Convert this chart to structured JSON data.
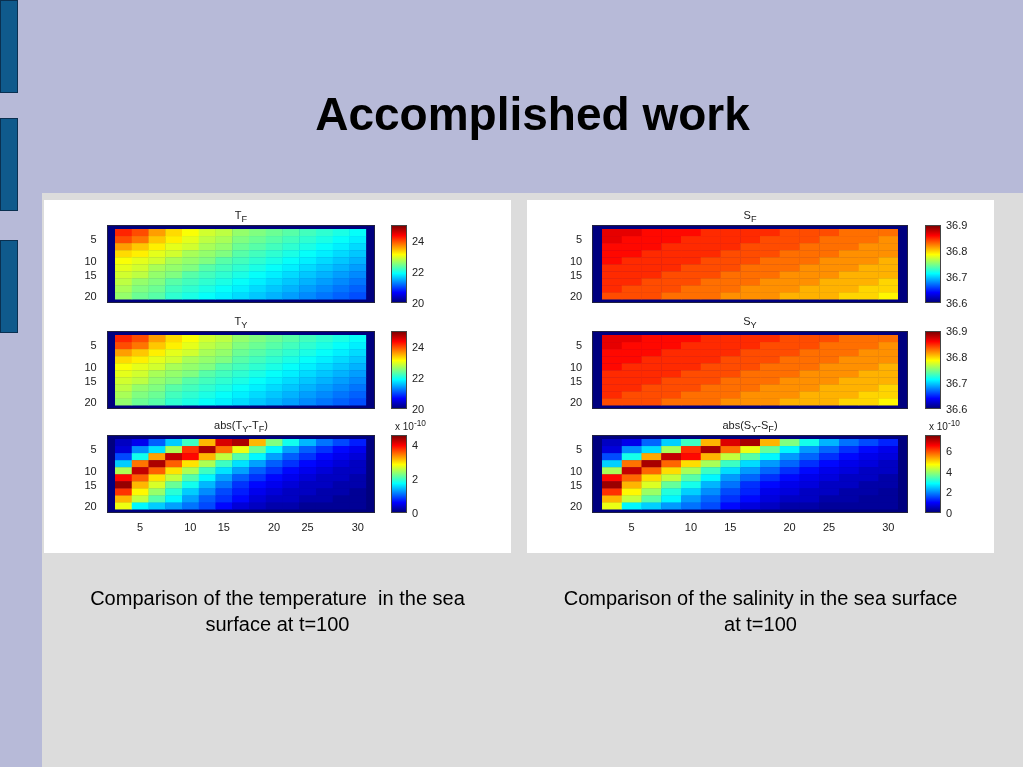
{
  "chart_data": [
    {
      "type": "heatmap",
      "title": "T$_{F}$",
      "annotations": [
        "Accomplished work"
      ],
      "tick_labels": "y",
      "categories": [
        null,
        "5",
        null,
        null,
        "10",
        null,
        "15",
        null,
        null,
        "20",
        null,
        "25",
        null,
        null,
        "30"
      ],
      "y_categories": [
        null,
        "5",
        null,
        null,
        "10",
        null,
        "15",
        null,
        null,
        "20"
      ],
      "clim": [
        20,
        25
      ],
      "cticks": [
        20,
        22,
        24
      ],
      "cells": [
        [
          24.2,
          24.0,
          23.6,
          23.3,
          23.1,
          22.9,
          22.8,
          22.6,
          22.5,
          22.4,
          22.3,
          22.2,
          22.1,
          22.0,
          21.9
        ],
        [
          24.0,
          23.8,
          23.4,
          23.2,
          23.0,
          22.8,
          22.7,
          22.5,
          22.4,
          22.3,
          22.2,
          22.1,
          22.0,
          21.9,
          21.8
        ],
        [
          23.6,
          23.4,
          23.2,
          23.0,
          22.9,
          22.7,
          22.6,
          22.4,
          22.3,
          22.2,
          22.1,
          22.0,
          21.9,
          21.8,
          21.7
        ],
        [
          23.3,
          23.2,
          23.0,
          22.9,
          22.7,
          22.6,
          22.5,
          22.3,
          22.2,
          22.1,
          22.0,
          21.9,
          21.8,
          21.7,
          21.6
        ],
        [
          23.1,
          23.0,
          22.9,
          22.7,
          22.6,
          22.5,
          22.3,
          22.2,
          22.1,
          22.0,
          21.9,
          21.8,
          21.7,
          21.6,
          21.5
        ],
        [
          23.0,
          22.9,
          22.7,
          22.6,
          22.5,
          22.3,
          22.2,
          22.1,
          22.0,
          21.9,
          21.8,
          21.7,
          21.6,
          21.5,
          21.4
        ],
        [
          22.9,
          22.8,
          22.6,
          22.5,
          22.3,
          22.2,
          22.1,
          22.0,
          21.9,
          21.8,
          21.7,
          21.6,
          21.5,
          21.4,
          21.3
        ],
        [
          22.8,
          22.6,
          22.5,
          22.3,
          22.2,
          22.1,
          22.0,
          21.9,
          21.8,
          21.7,
          21.6,
          21.5,
          21.4,
          21.3,
          21.2
        ],
        [
          22.7,
          22.5,
          22.4,
          22.2,
          22.1,
          22.0,
          21.9,
          21.8,
          21.7,
          21.6,
          21.5,
          21.4,
          21.3,
          21.2,
          21.1
        ],
        [
          22.6,
          22.4,
          22.3,
          22.1,
          22.0,
          21.9,
          21.8,
          21.7,
          21.6,
          21.5,
          21.4,
          21.3,
          21.2,
          21.1,
          21.0
        ]
      ]
    },
    {
      "type": "heatmap",
      "title": "T$_{Y}$",
      "tick_labels": "y",
      "categories": [
        null,
        "5",
        null,
        null,
        "10",
        null,
        "15",
        null,
        null,
        "20",
        null,
        "25",
        null,
        null,
        "30"
      ],
      "y_categories": [
        null,
        "5",
        null,
        null,
        "10",
        null,
        "15",
        null,
        null,
        "20"
      ],
      "clim": [
        20,
        25
      ],
      "cticks": [
        20,
        22,
        24
      ],
      "cells": [
        [
          24.2,
          24.0,
          23.6,
          23.3,
          23.1,
          22.9,
          22.8,
          22.6,
          22.5,
          22.4,
          22.3,
          22.2,
          22.1,
          22.0,
          21.9
        ],
        [
          24.0,
          23.8,
          23.4,
          23.2,
          23.0,
          22.8,
          22.7,
          22.5,
          22.4,
          22.3,
          22.2,
          22.1,
          22.0,
          21.9,
          21.8
        ],
        [
          23.6,
          23.4,
          23.2,
          23.0,
          22.9,
          22.7,
          22.6,
          22.4,
          22.3,
          22.2,
          22.1,
          22.0,
          21.9,
          21.8,
          21.7
        ],
        [
          23.3,
          23.2,
          23.0,
          22.9,
          22.7,
          22.6,
          22.5,
          22.3,
          22.2,
          22.1,
          22.0,
          21.9,
          21.8,
          21.7,
          21.6
        ],
        [
          23.1,
          23.0,
          22.9,
          22.7,
          22.6,
          22.5,
          22.3,
          22.2,
          22.1,
          22.0,
          21.9,
          21.8,
          21.7,
          21.6,
          21.5
        ],
        [
          23.0,
          22.9,
          22.7,
          22.6,
          22.5,
          22.3,
          22.2,
          22.1,
          22.0,
          21.9,
          21.8,
          21.7,
          21.6,
          21.5,
          21.4
        ],
        [
          22.9,
          22.8,
          22.6,
          22.5,
          22.3,
          22.2,
          22.1,
          22.0,
          21.9,
          21.8,
          21.7,
          21.6,
          21.5,
          21.4,
          21.3
        ],
        [
          22.8,
          22.6,
          22.5,
          22.3,
          22.2,
          22.1,
          22.0,
          21.9,
          21.8,
          21.7,
          21.6,
          21.5,
          21.4,
          21.3,
          21.2
        ],
        [
          22.7,
          22.5,
          22.4,
          22.2,
          22.1,
          22.0,
          21.9,
          21.8,
          21.7,
          21.6,
          21.5,
          21.4,
          21.3,
          21.2,
          21.1
        ],
        [
          22.6,
          22.4,
          22.3,
          22.1,
          22.0,
          21.9,
          21.8,
          21.7,
          21.6,
          21.5,
          21.4,
          21.3,
          21.2,
          21.1,
          21.0
        ]
      ]
    },
    {
      "type": "heatmap",
      "title": "abs(T$_{Y}$-T$_{F}$)",
      "clabel": "x 10$^{-10}$",
      "annotations": [
        "Comparison of the temperature  in the sea surface at t=100"
      ],
      "categories": [
        null,
        "5",
        null,
        null,
        "10",
        null,
        "15",
        null,
        null,
        "20",
        null,
        "25",
        null,
        null,
        "30"
      ],
      "y_categories": [
        null,
        "5",
        null,
        null,
        "10",
        null,
        "15",
        null,
        null,
        "20"
      ],
      "clim": [
        0,
        4.6
      ],
      "cticks": [
        0,
        2,
        4
      ],
      "cells": [
        [
          0.3,
          0.5,
          1.0,
          1.5,
          2.0,
          3.2,
          4.2,
          4.4,
          3.2,
          2.3,
          1.8,
          1.4,
          1.1,
          0.9,
          0.7
        ],
        [
          0.4,
          1.2,
          1.6,
          2.5,
          3.8,
          4.4,
          3.5,
          2.8,
          2.2,
          1.7,
          1.3,
          1.0,
          0.8,
          0.6,
          0.5
        ],
        [
          0.9,
          1.8,
          3.3,
          4.3,
          4.0,
          3.2,
          2.6,
          2.1,
          1.7,
          1.3,
          1.0,
          0.8,
          0.6,
          0.5,
          0.4
        ],
        [
          1.5,
          3.5,
          4.4,
          3.6,
          3.0,
          2.5,
          2.0,
          1.6,
          1.3,
          1.0,
          0.8,
          0.6,
          0.5,
          0.4,
          0.3
        ],
        [
          2.5,
          4.3,
          3.6,
          3.0,
          2.5,
          2.0,
          1.6,
          1.3,
          1.0,
          0.8,
          0.6,
          0.5,
          0.4,
          0.3,
          0.3
        ],
        [
          4.0,
          3.6,
          3.0,
          2.6,
          2.1,
          1.7,
          1.3,
          1.0,
          0.8,
          0.6,
          0.5,
          0.4,
          0.3,
          0.3,
          0.2
        ],
        [
          4.5,
          3.2,
          2.7,
          2.2,
          1.8,
          1.4,
          1.1,
          0.8,
          0.6,
          0.5,
          0.4,
          0.3,
          0.3,
          0.2,
          0.2
        ],
        [
          3.8,
          2.9,
          2.4,
          1.9,
          1.5,
          1.2,
          0.9,
          0.7,
          0.5,
          0.4,
          0.3,
          0.3,
          0.2,
          0.2,
          0.1
        ],
        [
          3.2,
          2.6,
          2.1,
          1.7,
          1.3,
          1.0,
          0.8,
          0.6,
          0.4,
          0.3,
          0.3,
          0.2,
          0.2,
          0.1,
          0.1
        ],
        [
          2.8,
          1.7,
          1.5,
          1.3,
          1.1,
          0.9,
          0.6,
          0.4,
          0.3,
          0.2,
          0.2,
          0.1,
          0.1,
          0.1,
          0.1
        ]
      ]
    },
    {
      "type": "heatmap",
      "title": "S$_{F}$",
      "tick_labels": "y",
      "categories": [
        null,
        "5",
        null,
        null,
        "10",
        null,
        "15",
        null,
        null,
        "20",
        null,
        "25",
        null,
        null,
        "30"
      ],
      "y_categories": [
        null,
        "5",
        null,
        null,
        "10",
        null,
        "15",
        null,
        null,
        "20"
      ],
      "clim": [
        36.6,
        36.9
      ],
      "cticks": [
        36.6,
        36.7,
        36.8,
        36.9
      ],
      "cells": [
        [
          36.87,
          36.87,
          36.86,
          36.86,
          36.86,
          36.85,
          36.85,
          36.85,
          36.85,
          36.84,
          36.84,
          36.84,
          36.83,
          36.83,
          36.83
        ],
        [
          36.87,
          36.86,
          36.86,
          36.86,
          36.85,
          36.85,
          36.85,
          36.85,
          36.84,
          36.84,
          36.84,
          36.83,
          36.83,
          36.83,
          36.82
        ],
        [
          36.86,
          36.86,
          36.86,
          36.85,
          36.85,
          36.85,
          36.85,
          36.84,
          36.84,
          36.84,
          36.83,
          36.83,
          36.83,
          36.82,
          36.82
        ],
        [
          36.86,
          36.86,
          36.85,
          36.85,
          36.85,
          36.85,
          36.84,
          36.84,
          36.84,
          36.83,
          36.83,
          36.83,
          36.82,
          36.82,
          36.82
        ],
        [
          36.86,
          36.85,
          36.85,
          36.85,
          36.85,
          36.84,
          36.84,
          36.84,
          36.83,
          36.83,
          36.83,
          36.82,
          36.82,
          36.82,
          36.81
        ],
        [
          36.85,
          36.85,
          36.85,
          36.85,
          36.84,
          36.84,
          36.84,
          36.83,
          36.83,
          36.83,
          36.82,
          36.82,
          36.82,
          36.81,
          36.81
        ],
        [
          36.85,
          36.85,
          36.85,
          36.84,
          36.84,
          36.84,
          36.83,
          36.83,
          36.83,
          36.82,
          36.82,
          36.82,
          36.81,
          36.81,
          36.81
        ],
        [
          36.85,
          36.85,
          36.84,
          36.84,
          36.84,
          36.83,
          36.83,
          36.83,
          36.82,
          36.82,
          36.82,
          36.81,
          36.81,
          36.81,
          36.8
        ],
        [
          36.85,
          36.84,
          36.84,
          36.84,
          36.83,
          36.83,
          36.83,
          36.82,
          36.82,
          36.82,
          36.81,
          36.81,
          36.81,
          36.8,
          36.8
        ],
        [
          36.84,
          36.84,
          36.84,
          36.83,
          36.83,
          36.83,
          36.82,
          36.82,
          36.82,
          36.81,
          36.81,
          36.81,
          36.8,
          36.8,
          36.79
        ]
      ]
    },
    {
      "type": "heatmap",
      "title": "S$_{Y}$",
      "tick_labels": "y",
      "categories": [
        null,
        "5",
        null,
        null,
        "10",
        null,
        "15",
        null,
        null,
        "20",
        null,
        "25",
        null,
        null,
        "30"
      ],
      "y_categories": [
        null,
        "5",
        null,
        null,
        "10",
        null,
        "15",
        null,
        null,
        "20"
      ],
      "clim": [
        36.6,
        36.9
      ],
      "cticks": [
        36.6,
        36.7,
        36.8,
        36.9
      ],
      "cells": [
        [
          36.87,
          36.87,
          36.86,
          36.86,
          36.86,
          36.85,
          36.85,
          36.85,
          36.85,
          36.84,
          36.84,
          36.84,
          36.83,
          36.83,
          36.83
        ],
        [
          36.87,
          36.86,
          36.86,
          36.86,
          36.85,
          36.85,
          36.85,
          36.85,
          36.84,
          36.84,
          36.84,
          36.83,
          36.83,
          36.83,
          36.82
        ],
        [
          36.86,
          36.86,
          36.86,
          36.85,
          36.85,
          36.85,
          36.85,
          36.84,
          36.84,
          36.84,
          36.83,
          36.83,
          36.83,
          36.82,
          36.82
        ],
        [
          36.86,
          36.86,
          36.85,
          36.85,
          36.85,
          36.85,
          36.84,
          36.84,
          36.84,
          36.83,
          36.83,
          36.83,
          36.82,
          36.82,
          36.82
        ],
        [
          36.86,
          36.85,
          36.85,
          36.85,
          36.85,
          36.84,
          36.84,
          36.84,
          36.83,
          36.83,
          36.83,
          36.82,
          36.82,
          36.82,
          36.81
        ],
        [
          36.85,
          36.85,
          36.85,
          36.85,
          36.84,
          36.84,
          36.84,
          36.83,
          36.83,
          36.83,
          36.82,
          36.82,
          36.82,
          36.81,
          36.81
        ],
        [
          36.85,
          36.85,
          36.85,
          36.84,
          36.84,
          36.84,
          36.83,
          36.83,
          36.83,
          36.82,
          36.82,
          36.82,
          36.81,
          36.81,
          36.81
        ],
        [
          36.85,
          36.85,
          36.84,
          36.84,
          36.84,
          36.83,
          36.83,
          36.83,
          36.82,
          36.82,
          36.82,
          36.81,
          36.81,
          36.81,
          36.8
        ],
        [
          36.85,
          36.84,
          36.84,
          36.84,
          36.83,
          36.83,
          36.83,
          36.82,
          36.82,
          36.82,
          36.81,
          36.81,
          36.81,
          36.8,
          36.8
        ],
        [
          36.84,
          36.84,
          36.84,
          36.83,
          36.83,
          36.83,
          36.82,
          36.82,
          36.82,
          36.81,
          36.81,
          36.81,
          36.8,
          36.8,
          36.79
        ]
      ]
    },
    {
      "type": "heatmap",
      "title": "abs(S$_{Y}$-S$_{F}$)",
      "clabel": "x 10$^{-10}$",
      "annotations": [
        "Comparison of the salinity in the sea surface at t=100"
      ],
      "categories": [
        null,
        "5",
        null,
        null,
        "10",
        null,
        "15",
        null,
        null,
        "20",
        null,
        "25",
        null,
        null,
        "30"
      ],
      "y_categories": [
        null,
        "5",
        null,
        null,
        "10",
        null,
        "15",
        null,
        null,
        "20"
      ],
      "clim": [
        0,
        7.6
      ],
      "cticks": [
        0,
        2,
        4,
        6
      ],
      "cells": [
        [
          0.5,
          0.8,
          1.7,
          2.5,
          3.3,
          5.3,
          6.9,
          7.3,
          5.3,
          3.8,
          3.0,
          2.3,
          1.8,
          1.5,
          1.2
        ],
        [
          0.7,
          2.0,
          2.6,
          4.1,
          6.3,
          7.3,
          5.8,
          4.6,
          3.6,
          2.8,
          2.1,
          1.7,
          1.3,
          1.0,
          0.8
        ],
        [
          1.5,
          3.0,
          5.4,
          7.1,
          6.6,
          5.3,
          4.3,
          3.5,
          2.8,
          2.1,
          1.7,
          1.3,
          1.0,
          0.8,
          0.7
        ],
        [
          2.5,
          5.8,
          7.3,
          5.9,
          5.0,
          4.1,
          3.3,
          2.6,
          2.1,
          1.7,
          1.3,
          1.0,
          0.8,
          0.7,
          0.5
        ],
        [
          4.1,
          7.1,
          5.9,
          5.0,
          4.1,
          3.3,
          2.6,
          2.1,
          1.7,
          1.3,
          1.0,
          0.8,
          0.7,
          0.5,
          0.5
        ],
        [
          6.6,
          5.9,
          5.0,
          4.3,
          3.5,
          2.8,
          2.1,
          1.7,
          1.3,
          1.0,
          0.8,
          0.7,
          0.5,
          0.5,
          0.3
        ],
        [
          7.4,
          5.3,
          4.5,
          3.6,
          3.0,
          2.3,
          1.8,
          1.3,
          1.0,
          0.8,
          0.7,
          0.5,
          0.5,
          0.3,
          0.3
        ],
        [
          6.3,
          4.8,
          4.0,
          3.1,
          2.5,
          2.0,
          1.5,
          1.2,
          0.8,
          0.7,
          0.5,
          0.5,
          0.3,
          0.3,
          0.2
        ],
        [
          5.3,
          4.3,
          3.5,
          2.8,
          2.1,
          1.7,
          1.3,
          1.0,
          0.7,
          0.5,
          0.5,
          0.3,
          0.3,
          0.2,
          0.2
        ],
        [
          4.6,
          2.8,
          2.5,
          2.1,
          1.8,
          1.5,
          1.0,
          0.7,
          0.5,
          0.3,
          0.3,
          0.2,
          0.2,
          0.2,
          0.2
        ]
      ]
    }
  ]
}
